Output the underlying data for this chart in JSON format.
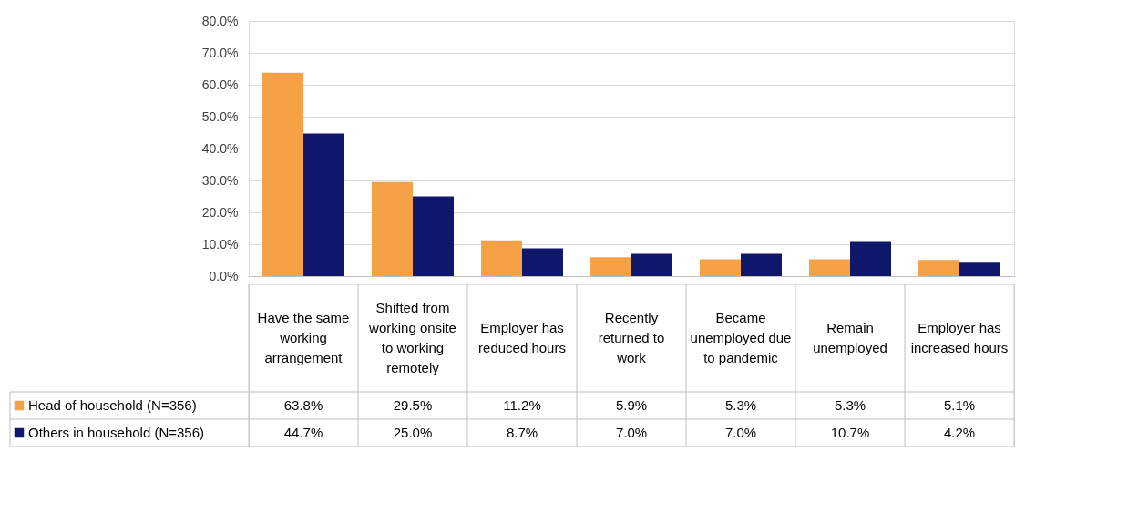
{
  "chart_data": {
    "type": "bar",
    "categories": [
      "Have the same working arrangement",
      "Shifted from working onsite to working remotely",
      "Employer has reduced hours",
      "Recently returned to work",
      "Became unemployed due to pandemic",
      "Remain unemployed",
      "Employer has increased hours"
    ],
    "series": [
      {
        "name": "Head of household (N=356)",
        "color": "#f4a245",
        "values": [
          63.8,
          29.5,
          11.2,
          5.9,
          5.3,
          5.3,
          5.1
        ],
        "value_labels": [
          "63.8%",
          "29.5%",
          "11.2%",
          "5.9%",
          "5.3%",
          "5.3%",
          "5.1%"
        ]
      },
      {
        "name": "Others in household (N=356)",
        "color": "#0f176b",
        "values": [
          44.7,
          25.0,
          8.7,
          7.0,
          7.0,
          10.7,
          4.2
        ],
        "value_labels": [
          "44.7%",
          "25.0%",
          "8.7%",
          "7.0%",
          "7.0%",
          "10.7%",
          "4.2%"
        ]
      }
    ],
    "ylim": [
      0,
      80
    ],
    "yticks": [
      {
        "value": 0,
        "label": "0.0%"
      },
      {
        "value": 10,
        "label": "10.0%"
      },
      {
        "value": 20,
        "label": "20.0%"
      },
      {
        "value": 30,
        "label": "30.0%"
      },
      {
        "value": 40,
        "label": "40.0%"
      },
      {
        "value": 50,
        "label": "50.0%"
      },
      {
        "value": 60,
        "label": "60.0%"
      },
      {
        "value": 70,
        "label": "70.0%"
      },
      {
        "value": 80,
        "label": "80.0%"
      }
    ],
    "grid": "y",
    "legend": "bottom left"
  }
}
